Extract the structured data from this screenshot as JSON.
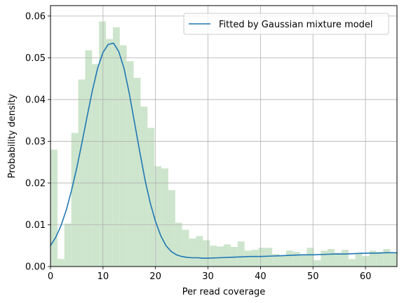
{
  "chart_data": {
    "type": "bar",
    "title": "",
    "xlabel": "Per read coverage",
    "ylabel": "Probability density",
    "xlim": [
      0,
      66
    ],
    "ylim": [
      0,
      0.0625
    ],
    "xticks": [
      0,
      10,
      20,
      30,
      40,
      50,
      60
    ],
    "xtick_labels": [
      "0",
      "10",
      "20",
      "30",
      "40",
      "50",
      "60"
    ],
    "yticks": [
      0.0,
      0.01,
      0.02,
      0.03,
      0.04,
      0.05,
      0.06
    ],
    "ytick_labels": [
      "0.00",
      "0.01",
      "0.02",
      "0.03",
      "0.04",
      "0.05",
      "0.06"
    ],
    "grid": true,
    "legend_position": "top-right",
    "histogram": {
      "bin_width": 1.32,
      "bin_starts": [
        0.0,
        1.32,
        2.64,
        3.96,
        5.28,
        6.6,
        7.92,
        9.24,
        10.56,
        11.88,
        13.2,
        14.52,
        15.84,
        17.16,
        18.48,
        19.8,
        21.12,
        22.44,
        23.76,
        25.08,
        26.4,
        27.72,
        29.04,
        30.36,
        31.68,
        33.0,
        34.32,
        35.64,
        36.96,
        38.28,
        39.6,
        40.92,
        42.24,
        43.56,
        44.88,
        46.2,
        47.52,
        48.84,
        50.16,
        51.48,
        52.8,
        54.12,
        55.44,
        56.76,
        58.08,
        59.4,
        60.72,
        62.04,
        63.36,
        64.68
      ],
      "density": [
        0.028,
        0.0018,
        0.0103,
        0.032,
        0.0448,
        0.0518,
        0.0485,
        0.0587,
        0.0545,
        0.0573,
        0.053,
        0.0492,
        0.0452,
        0.0383,
        0.0332,
        0.024,
        0.0235,
        0.0183,
        0.0105,
        0.0088,
        0.0067,
        0.0073,
        0.0063,
        0.005,
        0.0048,
        0.0053,
        0.0047,
        0.006,
        0.0038,
        0.004,
        0.0045,
        0.0045,
        0.003,
        0.0027,
        0.0038,
        0.0035,
        0.0028,
        0.0045,
        0.0015,
        0.0038,
        0.0042,
        0.0033,
        0.004,
        0.0018,
        0.003,
        0.0025,
        0.0038,
        0.0035,
        0.0042,
        0.0033
      ],
      "color": "#cde5cc"
    },
    "series": [
      {
        "name": "Fitted by Gaussian mixture model",
        "type": "line",
        "color": "#1f77b4",
        "x": [
          0,
          1,
          2,
          3,
          4,
          5,
          6,
          7,
          8,
          9,
          10,
          11,
          12,
          13,
          14,
          15,
          16,
          17,
          18,
          19,
          20,
          21,
          22,
          23,
          24,
          25,
          26,
          27,
          28,
          29,
          30,
          32,
          34,
          36,
          38,
          40,
          42,
          44,
          46,
          48,
          50,
          52,
          54,
          56,
          58,
          60,
          62,
          64,
          66
        ],
        "y": [
          0.005,
          0.007,
          0.0098,
          0.0135,
          0.0182,
          0.0236,
          0.0297,
          0.0361,
          0.0423,
          0.0476,
          0.0513,
          0.0532,
          0.0535,
          0.0515,
          0.0475,
          0.0415,
          0.0345,
          0.0275,
          0.0208,
          0.0152,
          0.0108,
          0.0074,
          0.005,
          0.0036,
          0.0028,
          0.0024,
          0.0022,
          0.0021,
          0.0021,
          0.002,
          0.002,
          0.0021,
          0.0022,
          0.0023,
          0.0024,
          0.0024,
          0.0025,
          0.0026,
          0.0027,
          0.0028,
          0.0028,
          0.0029,
          0.003,
          0.003,
          0.0031,
          0.0032,
          0.0032,
          0.0033,
          0.0033
        ]
      }
    ]
  }
}
